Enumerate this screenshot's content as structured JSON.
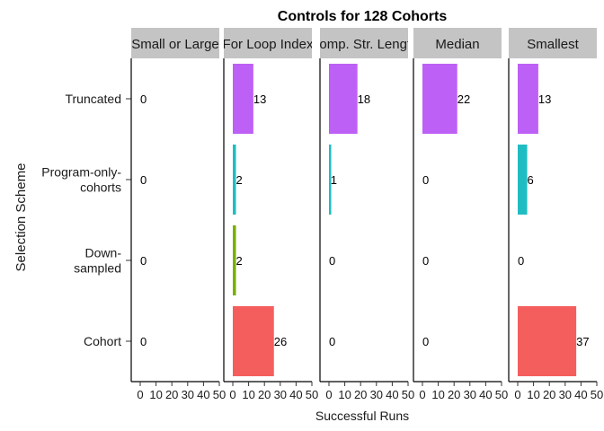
{
  "chart_data": {
    "type": "bar",
    "orientation": "horizontal",
    "title": "Controls for 128 Cohorts",
    "xlabel": "Successful Runs",
    "ylabel": "Selection Scheme",
    "xlim": [
      0,
      50
    ],
    "xticks": [
      "0",
      "10",
      "20",
      "30",
      "40",
      "50"
    ],
    "categories": [
      [
        "Truncated"
      ],
      [
        "Program-only-",
        "cohorts"
      ],
      [
        "Down-",
        "sampled"
      ],
      [
        "Cohort"
      ]
    ],
    "category_colors": [
      "#bd60f5",
      "#1fbdc2",
      "#7cae00",
      "#f45f5d"
    ],
    "grid": false,
    "legend": "none",
    "panels": [
      {
        "name": "Small or Large",
        "values": [
          0,
          0,
          0,
          0
        ]
      },
      {
        "name": "For Loop Index",
        "values": [
          13,
          2,
          2,
          26
        ]
      },
      {
        "name": "Comp. Str. Length",
        "values": [
          18,
          1,
          0,
          0
        ]
      },
      {
        "name": "Median",
        "values": [
          22,
          0,
          0,
          0
        ]
      },
      {
        "name": "Smallest",
        "values": [
          13,
          6,
          0,
          37
        ]
      }
    ]
  }
}
